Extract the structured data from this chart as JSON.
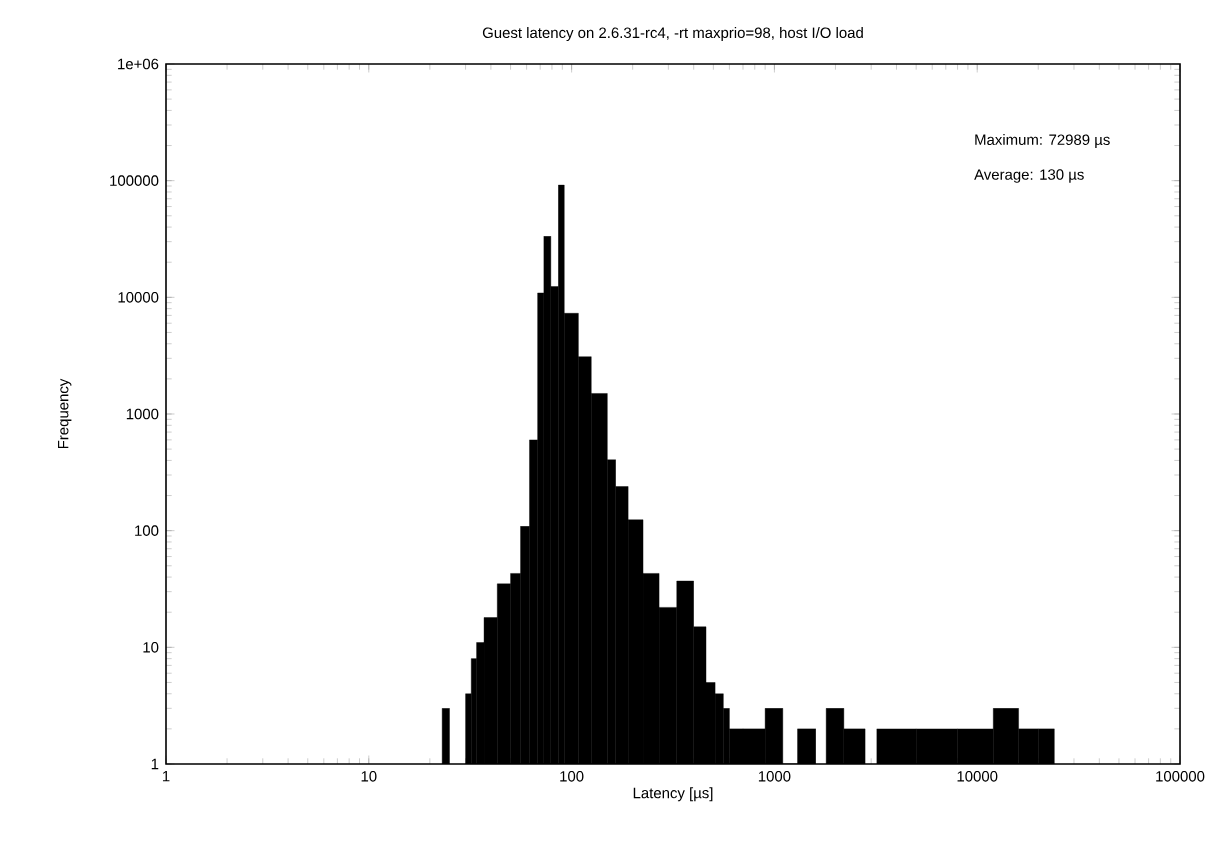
{
  "chart_data": {
    "type": "histogram",
    "title": "Guest latency on 2.6.31-rc4, -rt maxprio=98, host I/O load",
    "xlabel": "Latency [µs]",
    "ylabel": "Frequency",
    "annotations": [
      "Maximum: 72989 µs",
      "Average: 130 µs"
    ],
    "log": "xy",
    "color": "#000000",
    "xlim": [
      1,
      100000
    ],
    "ylim": [
      1,
      1000000
    ],
    "xticks": [
      1,
      10,
      100,
      1000,
      10000,
      100000
    ],
    "yticks": [
      1,
      10,
      100,
      1000,
      10000,
      100000,
      {
        "value": 1000000,
        "label": "1e+06"
      }
    ],
    "bins": [
      23,
      25,
      30,
      32,
      34,
      37,
      43,
      50,
      56,
      62,
      68,
      73,
      79,
      86,
      92,
      108,
      125,
      150,
      165,
      190,
      225,
      270,
      330,
      400,
      460,
      510,
      560,
      600,
      700,
      900,
      1100,
      1300,
      1600,
      1800,
      2200,
      2800,
      3200,
      5000,
      8000,
      12000,
      16000,
      20000,
      24000
    ],
    "values": [
      3,
      null,
      4,
      8,
      11,
      18,
      35,
      43,
      109,
      600,
      10900,
      33400,
      12400,
      91600,
      7300,
      3100,
      1500,
      405,
      239,
      124,
      43,
      22,
      37,
      15,
      5,
      4,
      3,
      2,
      2,
      3,
      1,
      2,
      null,
      3,
      2,
      null,
      2,
      2,
      2,
      3,
      2,
      2
    ]
  }
}
